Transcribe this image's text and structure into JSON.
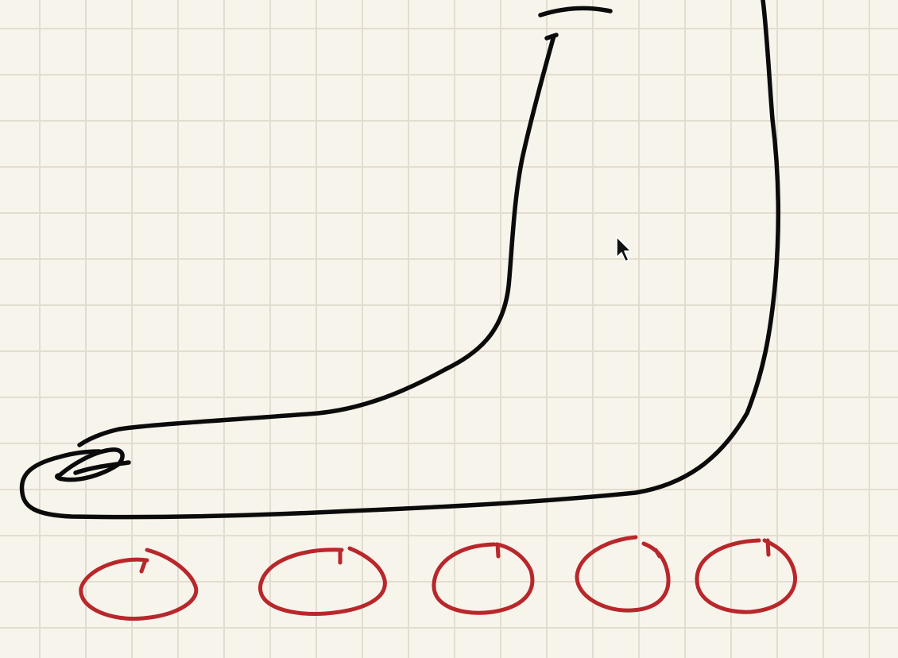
{
  "canvas": {
    "background_color": "#f7f4ec",
    "grid_color": "#e3ddd0",
    "grid": true
  },
  "drawing": {
    "outline_color": "#0b0b0b",
    "circle_color": "#b8272b",
    "circle_count": 5
  },
  "cursor": {
    "icon": "arrow-pointer-icon",
    "fill_color": "#111111",
    "outline_color": "#ffffff"
  }
}
